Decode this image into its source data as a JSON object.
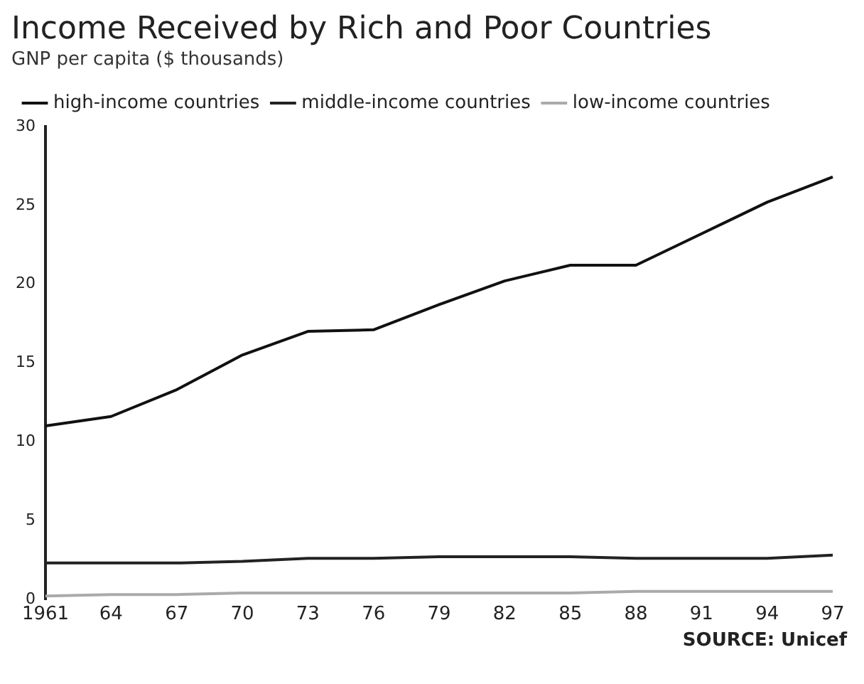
{
  "chart_data": {
    "type": "line",
    "title": "Income Received by Rich and Poor Countries",
    "subtitle": "GNP per capita ($ thousands)",
    "categories": [
      "1961",
      "64",
      "67",
      "70",
      "73",
      "76",
      "79",
      "82",
      "85",
      "88",
      "91",
      "94",
      "97"
    ],
    "series": [
      {
        "name": "high-income countries",
        "color": "#111111",
        "values": [
          11,
          11.6,
          13.3,
          15.5,
          17,
          17.1,
          18.7,
          20.2,
          21.2,
          21.2,
          23.2,
          25.2,
          26.8
        ]
      },
      {
        "name": "middle-income countries",
        "color": "#222222",
        "values": [
          2.3,
          2.3,
          2.3,
          2.4,
          2.6,
          2.6,
          2.7,
          2.7,
          2.7,
          2.6,
          2.6,
          2.6,
          2.8
        ]
      },
      {
        "name": "low-income countries",
        "color": "#aaaaaa",
        "values": [
          0.2,
          0.3,
          0.3,
          0.4,
          0.4,
          0.4,
          0.4,
          0.4,
          0.4,
          0.5,
          0.5,
          0.5,
          0.5
        ]
      }
    ],
    "ylim": [
      0,
      30
    ],
    "yticks": [
      0,
      5,
      10,
      15,
      20,
      25,
      30
    ],
    "grid": false,
    "legend": "top left",
    "marker": "none",
    "line_style": "solid",
    "annotations": [
      "SOURCE: Unicef"
    ]
  }
}
